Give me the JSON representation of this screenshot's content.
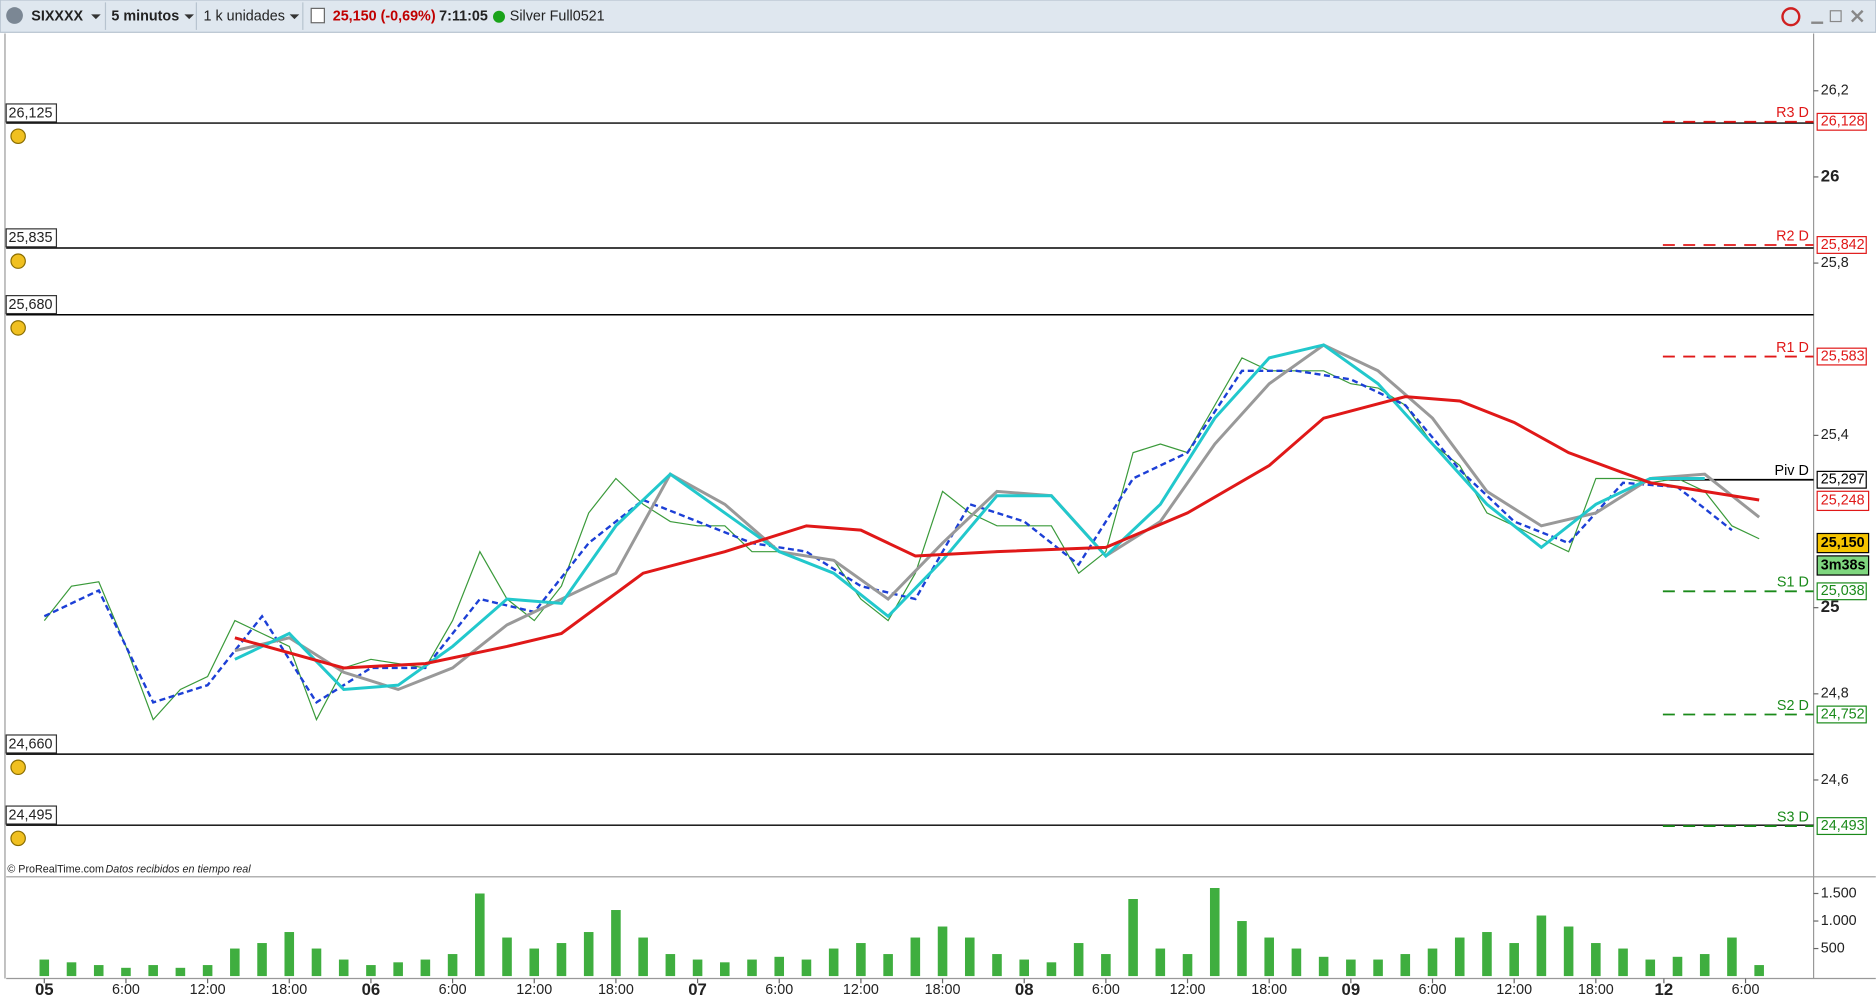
{
  "toolbar": {
    "symbol": "SIXXXX",
    "interval": "5 minutos",
    "units": "1 k unidades",
    "quote": "25,150 (-0,69%)",
    "time": "7:11:05",
    "instrument": "Silver Full0521"
  },
  "footer": {
    "source": "© ProRealTime.com",
    "note": "Datos recibidos en tiempo real"
  },
  "chart_data": [
    {
      "type": "line",
      "xlim": [
        -2.8,
        130
      ],
      "ylim": [
        24.378,
        26.333
      ],
      "xticks": [
        {
          "value": 0,
          "label": "05"
        },
        {
          "value": 6,
          "label": "6:00"
        },
        {
          "value": 12,
          "label": "12:00"
        },
        {
          "value": 18,
          "label": "18:00"
        },
        {
          "value": 24,
          "label": "06"
        },
        {
          "value": 30,
          "label": "6:00"
        },
        {
          "value": 36,
          "label": "12:00"
        },
        {
          "value": 42,
          "label": "18:00"
        },
        {
          "value": 48,
          "label": "07"
        },
        {
          "value": 54,
          "label": "6:00"
        },
        {
          "value": 60,
          "label": "12:00"
        },
        {
          "value": 66,
          "label": "18:00"
        },
        {
          "value": 72,
          "label": "08"
        },
        {
          "value": 78,
          "label": "6:00"
        },
        {
          "value": 84,
          "label": "12:00"
        },
        {
          "value": 90,
          "label": "18:00"
        },
        {
          "value": 96,
          "label": "09"
        },
        {
          "value": 102,
          "label": "6:00"
        },
        {
          "value": 108,
          "label": "12:00"
        },
        {
          "value": 114,
          "label": "18:00"
        },
        {
          "value": 119,
          "label": "12"
        },
        {
          "value": 125,
          "label": "6:00"
        }
      ],
      "yticks": [
        {
          "value": 26.2,
          "label": "26,2"
        },
        26,
        {
          "value": 25.8,
          "label": "25,8"
        },
        {
          "value": 25.4,
          "label": "25,4"
        },
        25,
        {
          "value": 24.8,
          "label": "24,8"
        },
        {
          "value": 24.6,
          "label": "24,6"
        }
      ],
      "series": [
        {
          "color": "#3a9a3a",
          "style": "solid",
          "width": 1,
          "x": [
            0,
            2,
            4,
            6,
            8,
            10,
            12,
            14,
            16,
            18,
            20,
            22,
            24,
            26,
            28,
            30,
            32,
            34,
            36,
            38,
            40,
            42,
            44,
            46,
            48,
            50,
            52,
            54,
            56,
            58,
            60,
            62,
            64,
            66,
            68,
            70,
            72,
            74,
            76,
            78,
            80,
            82,
            84,
            86,
            88,
            90,
            92,
            94,
            96,
            98,
            100,
            102,
            104,
            106,
            108,
            110,
            112,
            114,
            116,
            118,
            120,
            122,
            124,
            126
          ],
          "values": [
            24.97,
            25.05,
            25.06,
            24.91,
            24.74,
            24.81,
            24.84,
            24.97,
            24.94,
            24.91,
            24.74,
            24.86,
            24.88,
            24.87,
            24.86,
            24.97,
            25.13,
            25.02,
            24.97,
            25.05,
            25.22,
            25.3,
            25.24,
            25.2,
            25.19,
            25.19,
            25.13,
            25.13,
            25.12,
            25.11,
            25.02,
            24.97,
            25.08,
            25.27,
            25.22,
            25.19,
            25.19,
            25.19,
            25.08,
            25.13,
            25.36,
            25.38,
            25.36,
            25.47,
            25.58,
            25.55,
            25.55,
            25.55,
            25.52,
            25.51,
            25.47,
            25.38,
            25.33,
            25.22,
            25.19,
            25.16,
            25.13,
            25.3,
            25.3,
            25.29,
            25.3,
            25.27,
            25.19,
            25.16
          ]
        },
        {
          "color": "#1c3fd6",
          "style": "dashed",
          "width": 2,
          "x": [
            0,
            4,
            8,
            12,
            16,
            20,
            24,
            28,
            32,
            36,
            40,
            44,
            48,
            52,
            56,
            60,
            64,
            68,
            72,
            76,
            80,
            84,
            88,
            92,
            96,
            100,
            104,
            108,
            112,
            116,
            120,
            124
          ],
          "values": [
            24.98,
            25.04,
            24.78,
            24.82,
            24.98,
            24.78,
            24.86,
            24.86,
            25.02,
            24.99,
            25.15,
            25.25,
            25.2,
            25.15,
            25.13,
            25.05,
            25.02,
            25.24,
            25.2,
            25.1,
            25.3,
            25.36,
            25.55,
            25.55,
            25.53,
            25.47,
            25.32,
            25.2,
            25.15,
            25.29,
            25.28,
            25.18
          ]
        },
        {
          "color": "#999999",
          "style": "solid",
          "width": 2.5,
          "x": [
            14,
            18,
            22,
            26,
            30,
            34,
            38,
            42,
            46,
            50,
            54,
            58,
            62,
            66,
            70,
            74,
            78,
            82,
            86,
            90,
            94,
            98,
            102,
            106,
            110,
            114,
            118,
            122,
            126
          ],
          "values": [
            24.9,
            24.93,
            24.85,
            24.81,
            24.86,
            24.96,
            25.02,
            25.08,
            25.31,
            25.24,
            25.13,
            25.11,
            25.02,
            25.15,
            25.27,
            25.26,
            25.12,
            25.2,
            25.38,
            25.52,
            25.61,
            25.55,
            25.44,
            25.27,
            25.19,
            25.22,
            25.3,
            25.31,
            25.21
          ]
        },
        {
          "color": "#22c8cc",
          "style": "solid",
          "width": 2.5,
          "x": [
            14,
            18,
            22,
            26,
            30,
            34,
            38,
            42,
            46,
            50,
            54,
            58,
            62,
            66,
            70,
            74,
            78,
            82,
            86,
            90,
            94,
            98,
            102,
            106,
            110,
            114,
            118,
            122
          ],
          "values": [
            24.88,
            24.94,
            24.81,
            24.82,
            24.91,
            25.02,
            25.01,
            25.19,
            25.31,
            25.22,
            25.13,
            25.08,
            24.98,
            25.11,
            25.26,
            25.26,
            25.12,
            25.24,
            25.44,
            25.58,
            25.61,
            25.52,
            25.38,
            25.24,
            25.14,
            25.24,
            25.3,
            25.3
          ]
        },
        {
          "color": "#e01818",
          "style": "solid",
          "width": 2.5,
          "x": [
            14,
            22,
            28,
            34,
            38,
            44,
            50,
            56,
            60,
            64,
            70,
            78,
            84,
            90,
            94,
            100,
            104,
            108,
            112,
            118,
            122,
            126
          ],
          "values": [
            24.93,
            24.86,
            24.87,
            24.91,
            24.94,
            25.08,
            25.13,
            25.19,
            25.18,
            25.12,
            25.13,
            25.14,
            25.22,
            25.33,
            25.44,
            25.49,
            25.48,
            25.43,
            25.36,
            25.29,
            25.27,
            25.25
          ]
        }
      ],
      "alerts": [
        {
          "value": 26.125,
          "label": "26,125"
        },
        {
          "value": 25.835,
          "label": "25,835"
        },
        {
          "value": 25.68,
          "label": "25,680"
        },
        {
          "value": 24.66,
          "label": "24,660"
        },
        {
          "value": 24.495,
          "label": "24,495"
        }
      ],
      "pivots": [
        {
          "name": "R3 D",
          "value": 26.128,
          "label": "26,128",
          "color": "#e01818"
        },
        {
          "name": "R2 D",
          "value": 25.842,
          "label": "25,842",
          "color": "#e01818"
        },
        {
          "name": "R1 D",
          "value": 25.583,
          "label": "25,583",
          "color": "#e01818"
        },
        {
          "name": "Piv D",
          "value": 25.297,
          "label": "25,297",
          "color": "#000000"
        },
        {
          "name": "S1 D",
          "value": 25.038,
          "label": "25,038",
          "color": "#1a8a1a"
        },
        {
          "name": "S2 D",
          "value": 24.752,
          "label": "24,752",
          "color": "#1a8a1a"
        },
        {
          "name": "S3 D",
          "value": 24.493,
          "label": "24,493",
          "color": "#1a8a1a"
        }
      ],
      "markers": [
        {
          "value": 25.248,
          "label": "25,248",
          "color": "#e01818",
          "fill": "#ffffff"
        },
        {
          "value": 25.15,
          "label": "25,150",
          "color": "#000000",
          "fill": "#f5c400"
        },
        {
          "value": 25.098,
          "label": "3m38s",
          "color": "#000000",
          "fill": "#7ed67e"
        }
      ]
    },
    {
      "type": "bar",
      "color": "#3fae3f",
      "xlim": [
        -2.8,
        130
      ],
      "ylim": [
        0,
        1760
      ],
      "yticks": [
        {
          "value": 1500,
          "label": "1.500"
        },
        {
          "value": 1000,
          "label": "1.000"
        },
        500
      ],
      "x": [
        0,
        2,
        4,
        6,
        8,
        10,
        12,
        14,
        16,
        18,
        20,
        22,
        24,
        26,
        28,
        30,
        32,
        34,
        36,
        38,
        40,
        42,
        44,
        46,
        48,
        50,
        52,
        54,
        56,
        58,
        60,
        62,
        64,
        66,
        68,
        70,
        72,
        74,
        76,
        78,
        80,
        82,
        84,
        86,
        88,
        90,
        92,
        94,
        96,
        98,
        100,
        102,
        104,
        106,
        108,
        110,
        112,
        114,
        116,
        118,
        120,
        122,
        124,
        126
      ],
      "values": [
        300,
        250,
        200,
        150,
        200,
        150,
        200,
        500,
        600,
        800,
        500,
        300,
        200,
        250,
        300,
        400,
        1500,
        700,
        500,
        600,
        800,
        1200,
        700,
        400,
        300,
        250,
        300,
        350,
        300,
        500,
        600,
        400,
        700,
        900,
        700,
        400,
        300,
        250,
        600,
        400,
        1400,
        500,
        400,
        1600,
        1000,
        700,
        500,
        350,
        300,
        300,
        400,
        500,
        700,
        800,
        600,
        1100,
        900,
        600,
        500,
        300,
        350,
        400,
        700,
        200
      ]
    }
  ]
}
